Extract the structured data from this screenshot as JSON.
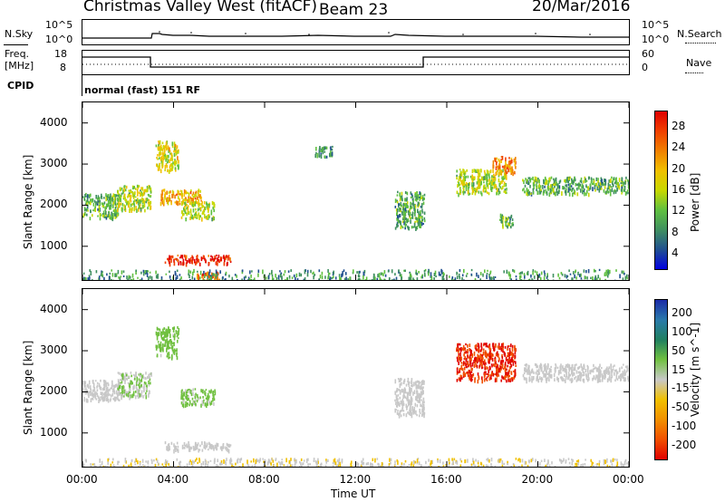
{
  "header": {
    "title": "Christmas Valley West (fitACF)",
    "beam": "Beam 23",
    "date": "20/Mar/2016"
  },
  "top_panels": {
    "nsky_label": "N.Sky",
    "nsky_ticks": [
      "10^5",
      "10^0"
    ],
    "nsky_right_ticks": [
      "10^5",
      "10^0"
    ],
    "nsearch_label": "N.Search",
    "freq_label_1": "Freq.",
    "freq_label_2": "[MHz]",
    "freq_ticks": [
      "18",
      "8"
    ],
    "nave_ticks": [
      "60",
      "0"
    ],
    "nave_label": "Nave",
    "cpid_label": "CPID",
    "cpid_text": "normal (fast) 151 RF"
  },
  "power_panel": {
    "ylabel": "Slant Range [km]",
    "cbar_label": "Power [dB]",
    "cbar_ticks": [
      "28",
      "24",
      "20",
      "16",
      "12",
      "8",
      "4"
    ],
    "cbar_colors": [
      "#e00000",
      "#f04000",
      "#f08000",
      "#f0c000",
      "#c8d800",
      "#60c040",
      "#409060",
      "#205090",
      "#0000e0"
    ]
  },
  "velocity_panel": {
    "ylabel": "Velocity [m s^-1]",
    "ylabel_range": "Slant Range [km]",
    "cbar_ticks": [
      "200",
      "100",
      "50",
      "15",
      "-15",
      "-50",
      "-100",
      "-200"
    ],
    "cbar_colors": [
      "#1a2aa8",
      "#2a7aaa",
      "#208060",
      "#70c040",
      "#c8c8c8",
      "#f0c000",
      "#f09000",
      "#f05000",
      "#e00000"
    ]
  },
  "x_axis": {
    "label": "Time UT",
    "ticks": [
      "00:00",
      "04:00",
      "08:00",
      "12:00",
      "16:00",
      "20:00",
      "00:00"
    ]
  },
  "chart_data": [
    {
      "type": "heatmap",
      "title": "Power",
      "xlabel": "Time UT",
      "ylabel": "Slant Range [km]",
      "ylim": [
        180,
        4500
      ],
      "x_range_hours": [
        0,
        24
      ],
      "y_ticks": [
        1000,
        2000,
        3000,
        4000
      ],
      "colorbar": {
        "label": "Power [dB]",
        "range": [
          0,
          30
        ]
      },
      "regions": [
        {
          "t": [
            0.0,
            1.6
          ],
          "r": [
            1700,
            2300
          ],
          "power_db": 10
        },
        {
          "t": [
            1.5,
            3.0
          ],
          "r": [
            1900,
            2500
          ],
          "power_db": 14
        },
        {
          "t": [
            3.2,
            4.2
          ],
          "r": [
            2850,
            3600
          ],
          "power_db": 16
        },
        {
          "t": [
            3.4,
            5.2
          ],
          "r": [
            2050,
            2400
          ],
          "power_db": 20
        },
        {
          "t": [
            4.3,
            5.8
          ],
          "r": [
            1700,
            2100
          ],
          "power_db": 14
        },
        {
          "t": [
            3.6,
            6.5
          ],
          "r": [
            600,
            800
          ],
          "power_db": 28
        },
        {
          "t": [
            5.0,
            6.0
          ],
          "r": [
            200,
            400
          ],
          "power_db": 24
        },
        {
          "t": [
            0.0,
            24.0
          ],
          "r": [
            180,
            450
          ],
          "power_db": 8
        },
        {
          "t": [
            13.7,
            15.0
          ],
          "r": [
            1450,
            2350
          ],
          "power_db": 10
        },
        {
          "t": [
            16.4,
            18.6
          ],
          "r": [
            2300,
            2900
          ],
          "power_db": 14
        },
        {
          "t": [
            18.0,
            19.0
          ],
          "r": [
            2800,
            3200
          ],
          "power_db": 22
        },
        {
          "t": [
            19.3,
            24.0
          ],
          "r": [
            2300,
            2700
          ],
          "power_db": 10
        },
        {
          "t": [
            18.3,
            18.9
          ],
          "r": [
            1500,
            1800
          ],
          "power_db": 10
        },
        {
          "t": [
            10.2,
            11.0
          ],
          "r": [
            3200,
            3450
          ],
          "power_db": 8
        }
      ]
    },
    {
      "type": "heatmap",
      "title": "Velocity",
      "xlabel": "Time UT",
      "ylabel": "Slant Range [km]",
      "ylim": [
        180,
        4500
      ],
      "x_range_hours": [
        0,
        24
      ],
      "y_ticks": [
        1000,
        2000,
        3000,
        4000
      ],
      "colorbar": {
        "label": "Velocity [m s^-1]",
        "range": [
          -250,
          250
        ]
      },
      "regions": [
        {
          "t": [
            0.0,
            1.6
          ],
          "r": [
            1800,
            2300
          ],
          "velocity": 0
        },
        {
          "t": [
            1.5,
            3.0
          ],
          "r": [
            1900,
            2500
          ],
          "velocity": 30
        },
        {
          "t": [
            3.2,
            4.2
          ],
          "r": [
            2850,
            3600
          ],
          "velocity": 60
        },
        {
          "t": [
            4.3,
            5.8
          ],
          "r": [
            1700,
            2100
          ],
          "velocity": 50
        },
        {
          "t": [
            3.6,
            6.5
          ],
          "r": [
            600,
            800
          ],
          "velocity": 0
        },
        {
          "t": [
            0.0,
            24.0
          ],
          "r": [
            180,
            400
          ],
          "velocity": -20
        },
        {
          "t": [
            13.7,
            15.0
          ],
          "r": [
            1450,
            2350
          ],
          "velocity": 0
        },
        {
          "t": [
            16.4,
            19.0
          ],
          "r": [
            2300,
            3200
          ],
          "velocity": -220
        },
        {
          "t": [
            19.3,
            24.0
          ],
          "r": [
            2300,
            2700
          ],
          "velocity": 0
        }
      ]
    }
  ]
}
